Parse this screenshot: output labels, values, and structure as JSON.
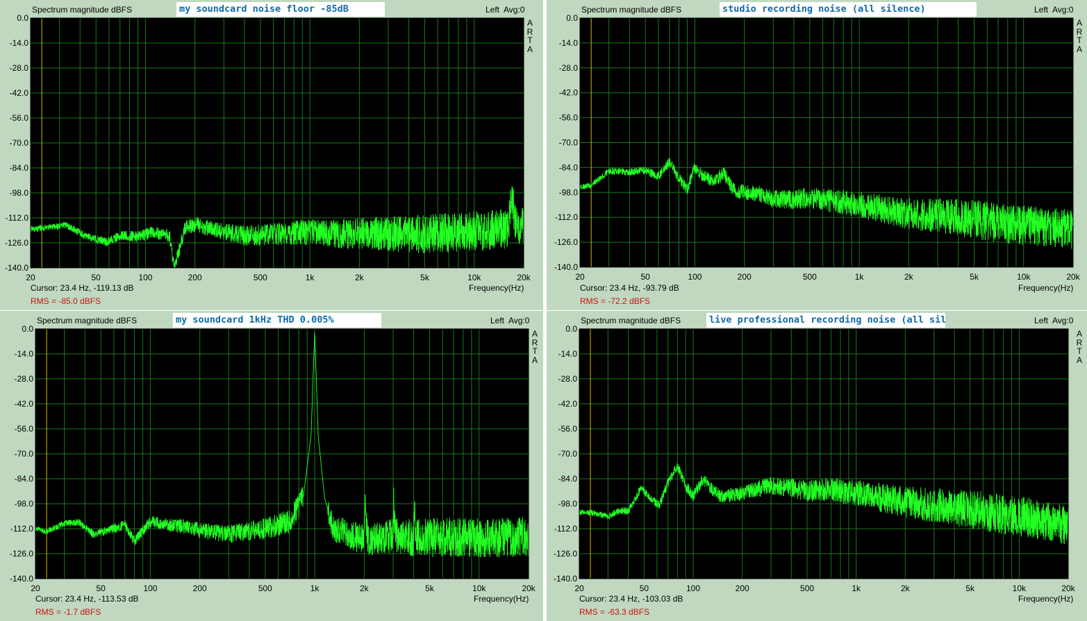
{
  "panels": [
    {
      "title": "Spectrum magnitude dBFS",
      "note": "my soundcard noise floor -85dB",
      "channel": "Left",
      "avg": "Avg:0",
      "brand": [
        "A",
        "R",
        "T",
        "A"
      ],
      "cursor": "Cursor:   23.4 Hz, -119.13 dB",
      "rms": "RMS =  -85.0 dBFS",
      "freq_label": "Frequency(Hz)",
      "colors": {
        "background": "#c0d8c0",
        "plot": "#000000",
        "grid": "#1a7a1a",
        "trace": "#22ff22",
        "cursor_line": "#d4c000",
        "rms": "#cc1111",
        "note": "#0f6aa8"
      }
    },
    {
      "title": "Spectrum magnitude dBFS",
      "note": "studio recording noise (all silence)",
      "channel": "Left",
      "avg": "Avg:0",
      "brand": [
        "A",
        "R",
        "T",
        "A"
      ],
      "cursor": "Cursor:   23.4 Hz, -93.79 dB",
      "rms": "RMS =  -72.2 dBFS",
      "freq_label": "Frequency(Hz)"
    },
    {
      "title": "Spectrum magnitude dBFS",
      "note": "my soundcard 1kHz THD    0.005%",
      "channel": "Left",
      "avg": "Avg:0",
      "brand": [
        "A",
        "R",
        "T",
        "A"
      ],
      "cursor": "Cursor:   23.4 Hz, -113.53 dB",
      "rms": "RMS =  -1.7 dBFS",
      "freq_label": "Frequency(Hz)"
    },
    {
      "title": "Spectrum magnitude dBFS",
      "note": "live professional recording noise (all silence)",
      "channel": "Left",
      "avg": "Avg:0",
      "brand": [
        "A",
        "R",
        "T",
        "A"
      ],
      "cursor": "Cursor:   23.4 Hz, -103.03 dB",
      "rms": "RMS =  -63.3 dBFS",
      "freq_label": "Frequency(Hz)"
    }
  ],
  "chart_data": [
    {
      "type": "line",
      "title": "Spectrum magnitude dBFS",
      "xlabel": "Frequency(Hz)",
      "ylabel": "",
      "x_scale": "log",
      "xlim": [
        20,
        20000
      ],
      "ylim": [
        -140,
        0
      ],
      "yticks": [
        "0.0",
        "-14.0",
        "-28.0",
        "-42.0",
        "-56.0",
        "-70.0",
        "-84.0",
        "-98.0",
        "-112.0",
        "-126.0",
        "-140.0"
      ],
      "xticks": [
        {
          "v": 20,
          "label": "20"
        },
        {
          "v": 50,
          "label": "50"
        },
        {
          "v": 100,
          "label": "100"
        },
        {
          "v": 200,
          "label": "200"
        },
        {
          "v": 500,
          "label": "500"
        },
        {
          "v": 1000,
          "label": "1k"
        },
        {
          "v": 2000,
          "label": "2k"
        },
        {
          "v": 5000,
          "label": "5k"
        },
        {
          "v": 10000,
          "label": "10k"
        },
        {
          "v": 20000,
          "label": "20k"
        }
      ],
      "cursor_hz": 23.4,
      "grid": true,
      "series": [
        {
          "values": [
            [
              20,
              -118.5
            ],
            [
              33,
              -116
            ],
            [
              45,
              -123
            ],
            [
              58,
              -125.5
            ],
            [
              70,
              -122
            ],
            [
              90,
              -122.5
            ],
            [
              110,
              -120
            ],
            [
              140,
              -122
            ],
            [
              150,
              -140
            ],
            [
              175,
              -117
            ],
            [
              200,
              -116
            ],
            [
              250,
              -118
            ],
            [
              300,
              -120
            ],
            [
              400,
              -122
            ],
            [
              700,
              -121
            ],
            [
              1000,
              -120
            ],
            [
              1500,
              -121
            ],
            [
              2000,
              -121
            ],
            [
              3000,
              -121
            ],
            [
              5000,
              -121
            ],
            [
              8000,
              -120
            ],
            [
              12000,
              -119
            ],
            [
              16000,
              -118
            ],
            [
              17000,
              -101
            ],
            [
              18000,
              -117
            ],
            [
              20000,
              -117
            ]
          ]
        }
      ]
    },
    {
      "type": "line",
      "title": "Spectrum magnitude dBFS",
      "xlabel": "Frequency(Hz)",
      "ylabel": "",
      "x_scale": "log",
      "xlim": [
        20,
        20000
      ],
      "ylim": [
        -140,
        0
      ],
      "yticks": [
        "0.0",
        "-14.0",
        "-28.0",
        "-42.0",
        "-56.0",
        "-70.0",
        "-84.0",
        "-98.0",
        "-112.0",
        "-126.0",
        "-140.0"
      ],
      "xticks": [
        {
          "v": 20,
          "label": "20"
        },
        {
          "v": 50,
          "label": "50"
        },
        {
          "v": 100,
          "label": "100"
        },
        {
          "v": 200,
          "label": "200"
        },
        {
          "v": 500,
          "label": "500"
        },
        {
          "v": 1000,
          "label": "1k"
        },
        {
          "v": 2000,
          "label": "2k"
        },
        {
          "v": 5000,
          "label": "5k"
        },
        {
          "v": 10000,
          "label": "10k"
        },
        {
          "v": 20000,
          "label": "20k"
        }
      ],
      "cursor_hz": 23.4,
      "grid": true,
      "series": [
        {
          "values": [
            [
              20,
              -95
            ],
            [
              23.4,
              -93.8
            ],
            [
              30,
              -86
            ],
            [
              40,
              -86.5
            ],
            [
              50,
              -85.5
            ],
            [
              60,
              -89
            ],
            [
              70,
              -81
            ],
            [
              80,
              -90
            ],
            [
              90,
              -96
            ],
            [
              100,
              -84
            ],
            [
              110,
              -88
            ],
            [
              130,
              -92
            ],
            [
              150,
              -87
            ],
            [
              170,
              -96
            ],
            [
              200,
              -98
            ],
            [
              250,
              -99
            ],
            [
              300,
              -102
            ],
            [
              400,
              -102
            ],
            [
              500,
              -101
            ],
            [
              700,
              -103
            ],
            [
              1000,
              -105
            ],
            [
              1500,
              -108
            ],
            [
              2000,
              -110
            ],
            [
              3000,
              -111
            ],
            [
              5000,
              -113
            ],
            [
              8000,
              -116
            ],
            [
              12000,
              -117
            ],
            [
              16000,
              -118
            ],
            [
              20000,
              -119
            ]
          ]
        }
      ]
    },
    {
      "type": "line",
      "title": "Spectrum magnitude dBFS",
      "xlabel": "Frequency(Hz)",
      "ylabel": "",
      "x_scale": "log",
      "xlim": [
        20,
        20000
      ],
      "ylim": [
        -140,
        0
      ],
      "yticks": [
        "0.0",
        "-14.0",
        "-28.0",
        "-42.0",
        "-56.0",
        "-70.0",
        "-84.0",
        "-98.0",
        "-112.0",
        "-126.0",
        "-140.0"
      ],
      "xticks": [
        {
          "v": 20,
          "label": "20"
        },
        {
          "v": 50,
          "label": "50"
        },
        {
          "v": 100,
          "label": "100"
        },
        {
          "v": 200,
          "label": "200"
        },
        {
          "v": 500,
          "label": "500"
        },
        {
          "v": 1000,
          "label": "1k"
        },
        {
          "v": 2000,
          "label": "2k"
        },
        {
          "v": 5000,
          "label": "5k"
        },
        {
          "v": 10000,
          "label": "10k"
        },
        {
          "v": 20000,
          "label": "20k"
        }
      ],
      "cursor_hz": 23.4,
      "grid": true,
      "series": [
        {
          "values": [
            [
              20,
              -112
            ],
            [
              23.4,
              -113.5
            ],
            [
              30,
              -109
            ],
            [
              37,
              -108.5
            ],
            [
              45,
              -115
            ],
            [
              55,
              -113
            ],
            [
              70,
              -110
            ],
            [
              80,
              -119
            ],
            [
              100,
              -108
            ],
            [
              130,
              -110
            ],
            [
              170,
              -111
            ],
            [
              200,
              -113
            ],
            [
              300,
              -115
            ],
            [
              500,
              -112
            ],
            [
              700,
              -108
            ],
            [
              850,
              -95
            ],
            [
              950,
              -60
            ],
            [
              1000,
              -1
            ],
            [
              1050,
              -60
            ],
            [
              1150,
              -95
            ],
            [
              1300,
              -112
            ],
            [
              2000,
              -118
            ],
            [
              2020,
              -96
            ],
            [
              2100,
              -118
            ],
            [
              3000,
              -116
            ],
            [
              3020,
              -96
            ],
            [
              3100,
              -116
            ],
            [
              4000,
              -117
            ],
            [
              4020,
              -94
            ],
            [
              4100,
              -117
            ],
            [
              6000,
              -117
            ],
            [
              10000,
              -117
            ],
            [
              15000,
              -117
            ],
            [
              20000,
              -116
            ]
          ]
        }
      ]
    },
    {
      "type": "line",
      "title": "Spectrum magnitude dBFS",
      "xlabel": "Frequency(Hz)",
      "ylabel": "",
      "x_scale": "log",
      "xlim": [
        20,
        20000
      ],
      "ylim": [
        -140,
        0
      ],
      "yticks": [
        "0.0",
        "-14.0",
        "-28.0",
        "-42.0",
        "-56.0",
        "-70.0",
        "-84.0",
        "-98.0",
        "-112.0",
        "-126.0",
        "-140.0"
      ],
      "xticks": [
        {
          "v": 20,
          "label": "20"
        },
        {
          "v": 50,
          "label": "50"
        },
        {
          "v": 100,
          "label": "100"
        },
        {
          "v": 200,
          "label": "200"
        },
        {
          "v": 500,
          "label": "500"
        },
        {
          "v": 1000,
          "label": "1k"
        },
        {
          "v": 2000,
          "label": "2k"
        },
        {
          "v": 5000,
          "label": "5k"
        },
        {
          "v": 10000,
          "label": "10k"
        },
        {
          "v": 20000,
          "label": "20k"
        }
      ],
      "cursor_hz": 23.4,
      "grid": true,
      "series": [
        {
          "values": [
            [
              20,
              -103
            ],
            [
              23.4,
              -103
            ],
            [
              30,
              -105
            ],
            [
              35,
              -102
            ],
            [
              40,
              -102
            ],
            [
              48,
              -89
            ],
            [
              55,
              -95
            ],
            [
              62,
              -99
            ],
            [
              70,
              -86
            ],
            [
              80,
              -77
            ],
            [
              90,
              -88
            ],
            [
              100,
              -94
            ],
            [
              115,
              -84
            ],
            [
              130,
              -90
            ],
            [
              150,
              -94
            ],
            [
              200,
              -92
            ],
            [
              300,
              -88
            ],
            [
              400,
              -89
            ],
            [
              500,
              -91
            ],
            [
              700,
              -90
            ],
            [
              1000,
              -92
            ],
            [
              1500,
              -95
            ],
            [
              2000,
              -97
            ],
            [
              3000,
              -99
            ],
            [
              5000,
              -101
            ],
            [
              8000,
              -104
            ],
            [
              12000,
              -106
            ],
            [
              16000,
              -108
            ],
            [
              20000,
              -110
            ]
          ]
        }
      ]
    }
  ]
}
